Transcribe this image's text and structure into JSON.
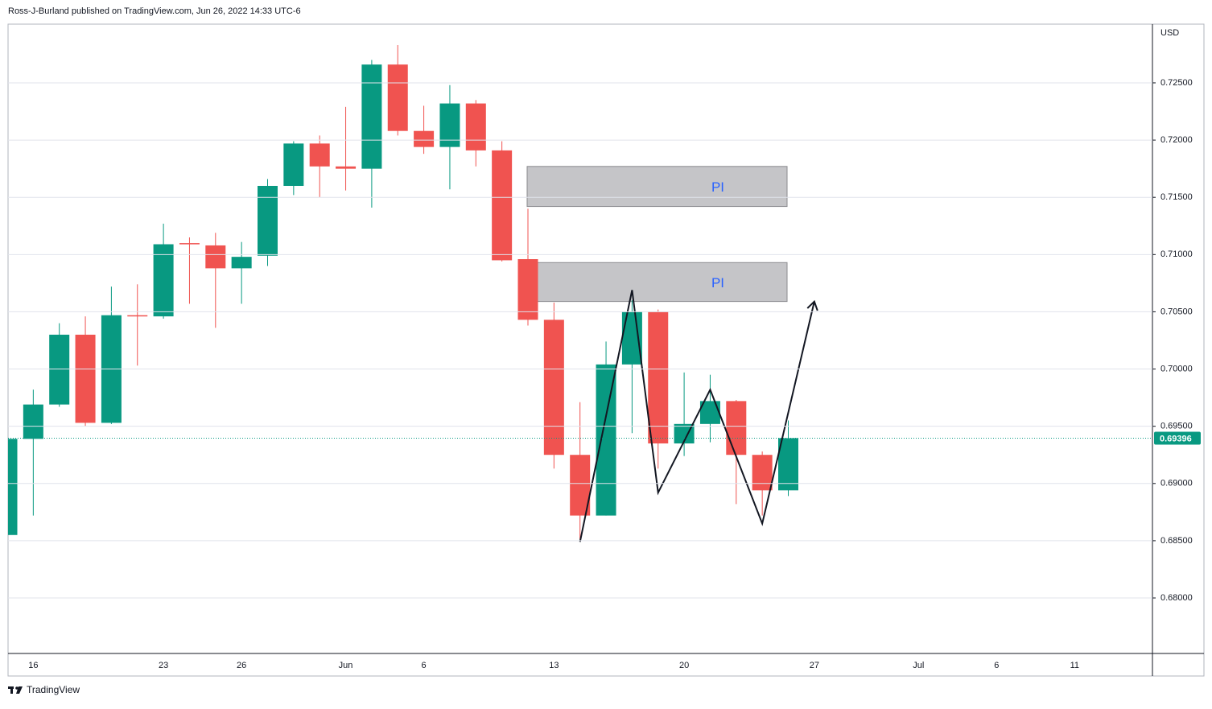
{
  "chart_data": {
    "type": "candlestick",
    "attribution": "Ross-J-Burland published on TradingView.com, Jun 26, 2022 14:33 UTC-6",
    "currency": "USD",
    "footer": "TradingView",
    "categories": [
      null,
      "16",
      null,
      null,
      null,
      null,
      "23",
      null,
      null,
      "26",
      null,
      null,
      null,
      "Jun",
      null,
      null,
      "6",
      null,
      null,
      null,
      null,
      "13",
      null,
      null,
      null,
      null,
      "20",
      null,
      null,
      null,
      null,
      "27",
      null,
      null,
      null,
      "Jul",
      null,
      null,
      "6",
      null,
      null,
      "11",
      null,
      null
    ],
    "open": [
      0.6855,
      0.6939,
      0.6969,
      0.703,
      0.6953,
      0.7047,
      0.7046,
      0.711,
      0.7108,
      0.7088,
      0.7099,
      0.716,
      0.7197,
      0.7177,
      0.7175,
      0.7266,
      0.7208,
      0.7194,
      0.7232,
      0.7191,
      0.7096,
      0.7043,
      0.6925,
      0.6872,
      0.7004,
      0.705,
      0.6935,
      0.6952,
      0.6972,
      0.6925,
      0.6894,
      null,
      null,
      null,
      null,
      null,
      null,
      null,
      null,
      null,
      null,
      null,
      null,
      null
    ],
    "high": [
      0.6939,
      0.6982,
      0.704,
      0.7046,
      0.7072,
      0.7074,
      0.7127,
      0.7115,
      0.7119,
      0.7111,
      0.7166,
      0.7199,
      0.7204,
      0.7229,
      0.727,
      0.7283,
      0.723,
      0.7248,
      0.7235,
      0.7199,
      0.714,
      0.7058,
      0.6971,
      0.7024,
      0.706,
      0.7052,
      0.6997,
      0.6995,
      0.6973,
      0.6928,
      0.6955,
      null,
      null,
      null,
      null,
      null,
      null,
      null,
      null,
      null,
      null,
      null,
      null,
      null
    ],
    "low": [
      0.6855,
      0.6872,
      0.6967,
      0.695,
      0.6952,
      0.7003,
      0.7044,
      0.7057,
      0.7036,
      0.7057,
      0.709,
      0.7152,
      0.715,
      0.7156,
      0.7141,
      0.7204,
      0.7188,
      0.7157,
      0.7177,
      0.7094,
      0.7038,
      0.6913,
      0.6851,
      0.6872,
      0.6944,
      0.6913,
      0.6924,
      0.6936,
      0.6882,
      0.6872,
      0.6889,
      null,
      null,
      null,
      null,
      null,
      null,
      null,
      null,
      null,
      null,
      null,
      null,
      null
    ],
    "close": [
      0.6939,
      0.6969,
      0.703,
      0.6953,
      0.7047,
      0.7046,
      0.7109,
      0.7109,
      0.7088,
      0.7098,
      0.716,
      0.7197,
      0.7177,
      0.7175,
      0.7266,
      0.7208,
      0.7194,
      0.7232,
      0.7191,
      0.7095,
      0.7043,
      0.6925,
      0.6872,
      0.7004,
      0.705,
      0.6935,
      0.6952,
      0.6972,
      0.6925,
      0.6894,
      0.69396,
      null,
      null,
      null,
      null,
      null,
      null,
      null,
      null,
      null,
      null,
      null,
      null,
      null
    ],
    "up_color": "#089981",
    "down_color": "#f05350",
    "last_price": 0.69396,
    "ylim": [
      0.67515,
      0.73013
    ],
    "yticks": [
      {
        "value": 0.68,
        "label": "0.68000"
      },
      {
        "value": 0.685,
        "label": "0.68500"
      },
      {
        "value": 0.69,
        "label": "0.69000"
      },
      {
        "value": 0.695,
        "label": "0.69500"
      },
      {
        "value": 0.7,
        "label": "0.70000"
      },
      {
        "value": 0.705,
        "label": "0.70500"
      },
      {
        "value": 0.71,
        "label": "0.71000"
      },
      {
        "value": 0.715,
        "label": "0.71500"
      },
      {
        "value": 0.72,
        "label": "0.72000"
      },
      {
        "value": 0.725,
        "label": "0.72500"
      }
    ],
    "grid": true,
    "zones": [
      {
        "label": "PI",
        "top": 0.7177,
        "bottom": 0.7142
      },
      {
        "label": "PI",
        "top": 0.7093,
        "bottom": 0.7059
      }
    ],
    "pattern_prices": [
      0.6849,
      0.7069,
      0.6892,
      0.6982,
      0.6865,
      0.7059
    ]
  }
}
